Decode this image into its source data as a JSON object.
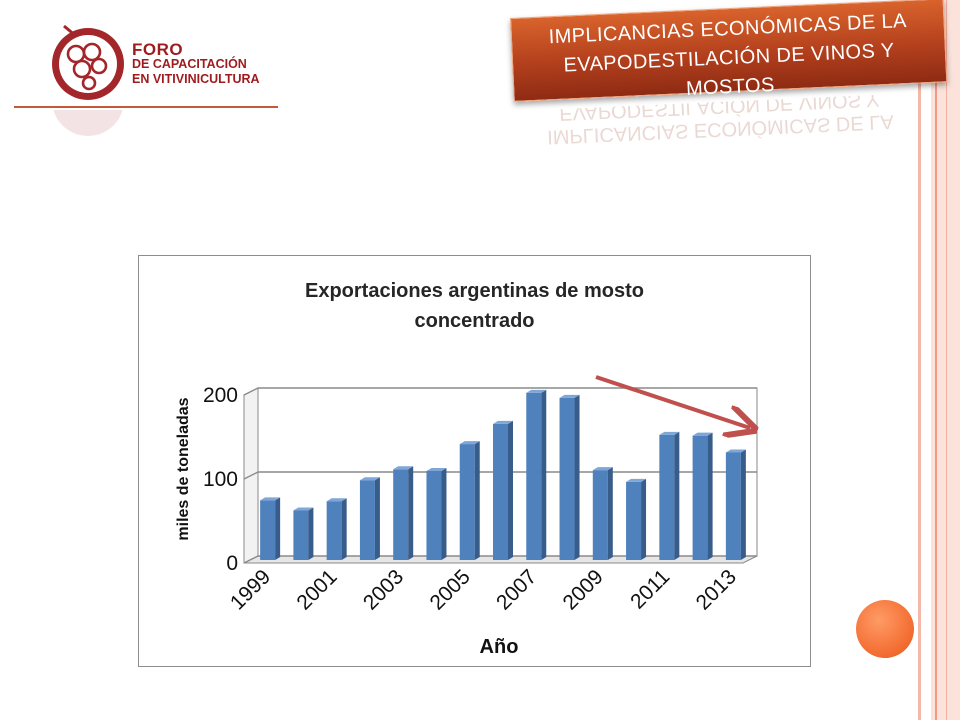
{
  "brand": {
    "line1": "FORO",
    "line2": "DE CAPACITACIÓN",
    "line3": "EN VITIVINICULTURA"
  },
  "slide": {
    "title": "IMPLICANCIAS ECONÓMICAS DE LA EVAPODESTILACIÓN DE VINOS Y MOSTOS"
  },
  "colors": {
    "bar": "#4f81bd",
    "accent": "#c0391b",
    "arrow": "#c0504d",
    "orb": "#f26b2f"
  },
  "chart_data": {
    "type": "bar",
    "title": "Exportaciones argentinas de mosto concentrado",
    "xlabel": "Año",
    "ylabel": "miles de toneladas",
    "categories": [
      "1999",
      "2000",
      "2001",
      "2002",
      "2003",
      "2004",
      "2005",
      "2006",
      "2007",
      "2008",
      "2009",
      "2010",
      "2011",
      "2012",
      "2013"
    ],
    "x_tick_labels": [
      "1999",
      "2001",
      "2003",
      "2005",
      "2007",
      "2009",
      "2011",
      "2013"
    ],
    "y_tick_labels": [
      "0",
      "100",
      "200"
    ],
    "values": [
      71,
      59,
      70,
      95,
      108,
      106,
      138,
      162,
      199,
      193,
      107,
      93,
      149,
      148,
      128
    ],
    "ylim": [
      0,
      200
    ],
    "grid": true,
    "legend": "none",
    "annotation": "downward trend arrow"
  }
}
